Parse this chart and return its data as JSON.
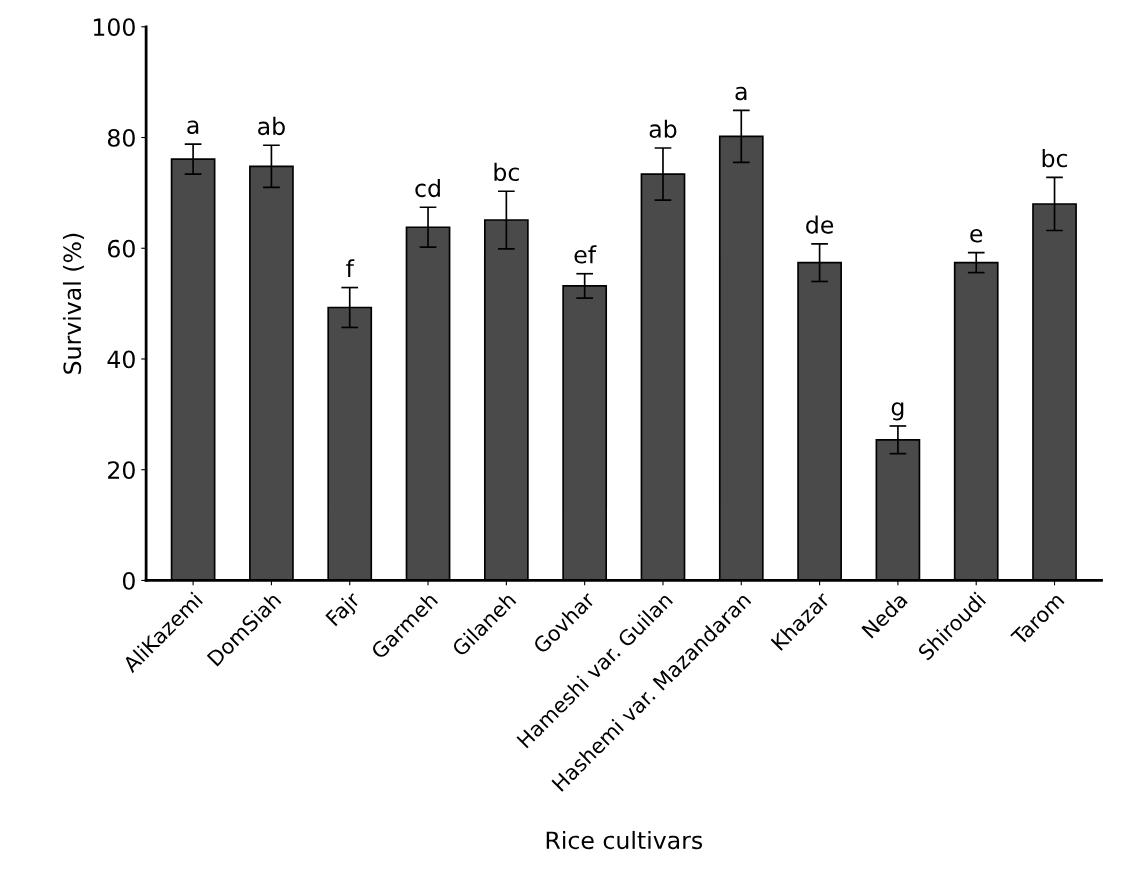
{
  "chart_data": {
    "type": "bar",
    "xlabel": "Rice cultivars",
    "ylabel": "Survival (%)",
    "categories": [
      "AliKazemi",
      "DomSiah",
      "Fajr",
      "Garmeh",
      "Gilaneh",
      "Govhar",
      "Hameshi var. Guilan",
      "Hashemi var. Mazandaran",
      "Khazar",
      "Neda",
      "Shiroudi",
      "Tarom"
    ],
    "values": [
      76.1,
      74.8,
      49.3,
      63.8,
      65.1,
      53.2,
      73.4,
      80.2,
      57.4,
      25.4,
      57.4,
      68.0
    ],
    "errors": [
      2.7,
      3.8,
      3.6,
      3.6,
      5.2,
      2.2,
      4.7,
      4.7,
      3.4,
      2.5,
      1.8,
      4.8
    ],
    "color": "#4a4a4a",
    "ylim": [
      0,
      100
    ],
    "yticks": [
      0,
      20,
      40,
      60,
      80,
      100
    ],
    "grid": false,
    "legend": false,
    "annotations": [
      "a",
      "ab",
      "f",
      "cd",
      "bc",
      "ef",
      "ab",
      "a",
      "de",
      "g",
      "e",
      "bc"
    ]
  }
}
